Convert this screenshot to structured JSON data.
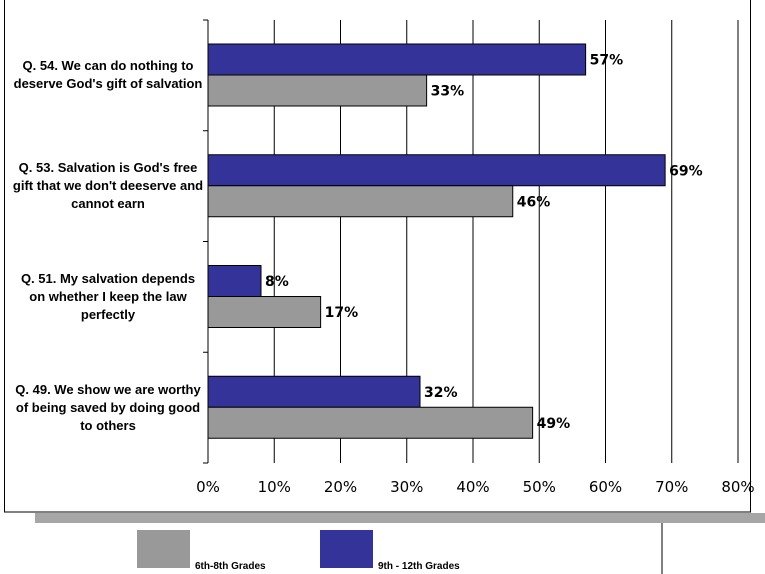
{
  "chart_data": {
    "type": "hbar",
    "categories": [
      "Q. 54. We can do nothing to deserve God's gift of salvation",
      "Q. 53. Salvation is God's free gift that we don't deeserve and cannot earn",
      "Q. 51. My salvation depends on whether I keep the law perfectly",
      "Q. 49. We show we are worthy of being saved by doing good to others"
    ],
    "series": [
      {
        "name": "6th-8th Grades",
        "color": "#999999",
        "values": [
          33,
          46,
          17,
          49
        ],
        "value_labels": [
          "33%",
          "46%",
          "17%",
          "49%"
        ]
      },
      {
        "name": "9th - 12th Grades",
        "color": "#333399",
        "values": [
          57,
          69,
          8,
          32
        ],
        "value_labels": [
          "57%",
          "69%",
          "8%",
          "32%"
        ]
      }
    ],
    "xlim": [
      0,
      80
    ],
    "xticks": [
      {
        "value": 0,
        "label": "0%"
      },
      {
        "value": 10,
        "label": "10%"
      },
      {
        "value": 20,
        "label": "20%"
      },
      {
        "value": 30,
        "label": "30%"
      },
      {
        "value": 40,
        "label": "40%"
      },
      {
        "value": 50,
        "label": "50%"
      },
      {
        "value": 60,
        "label": "60%"
      },
      {
        "value": 70,
        "label": "70%"
      },
      {
        "value": 80,
        "label": "80%"
      }
    ],
    "grid": true
  }
}
